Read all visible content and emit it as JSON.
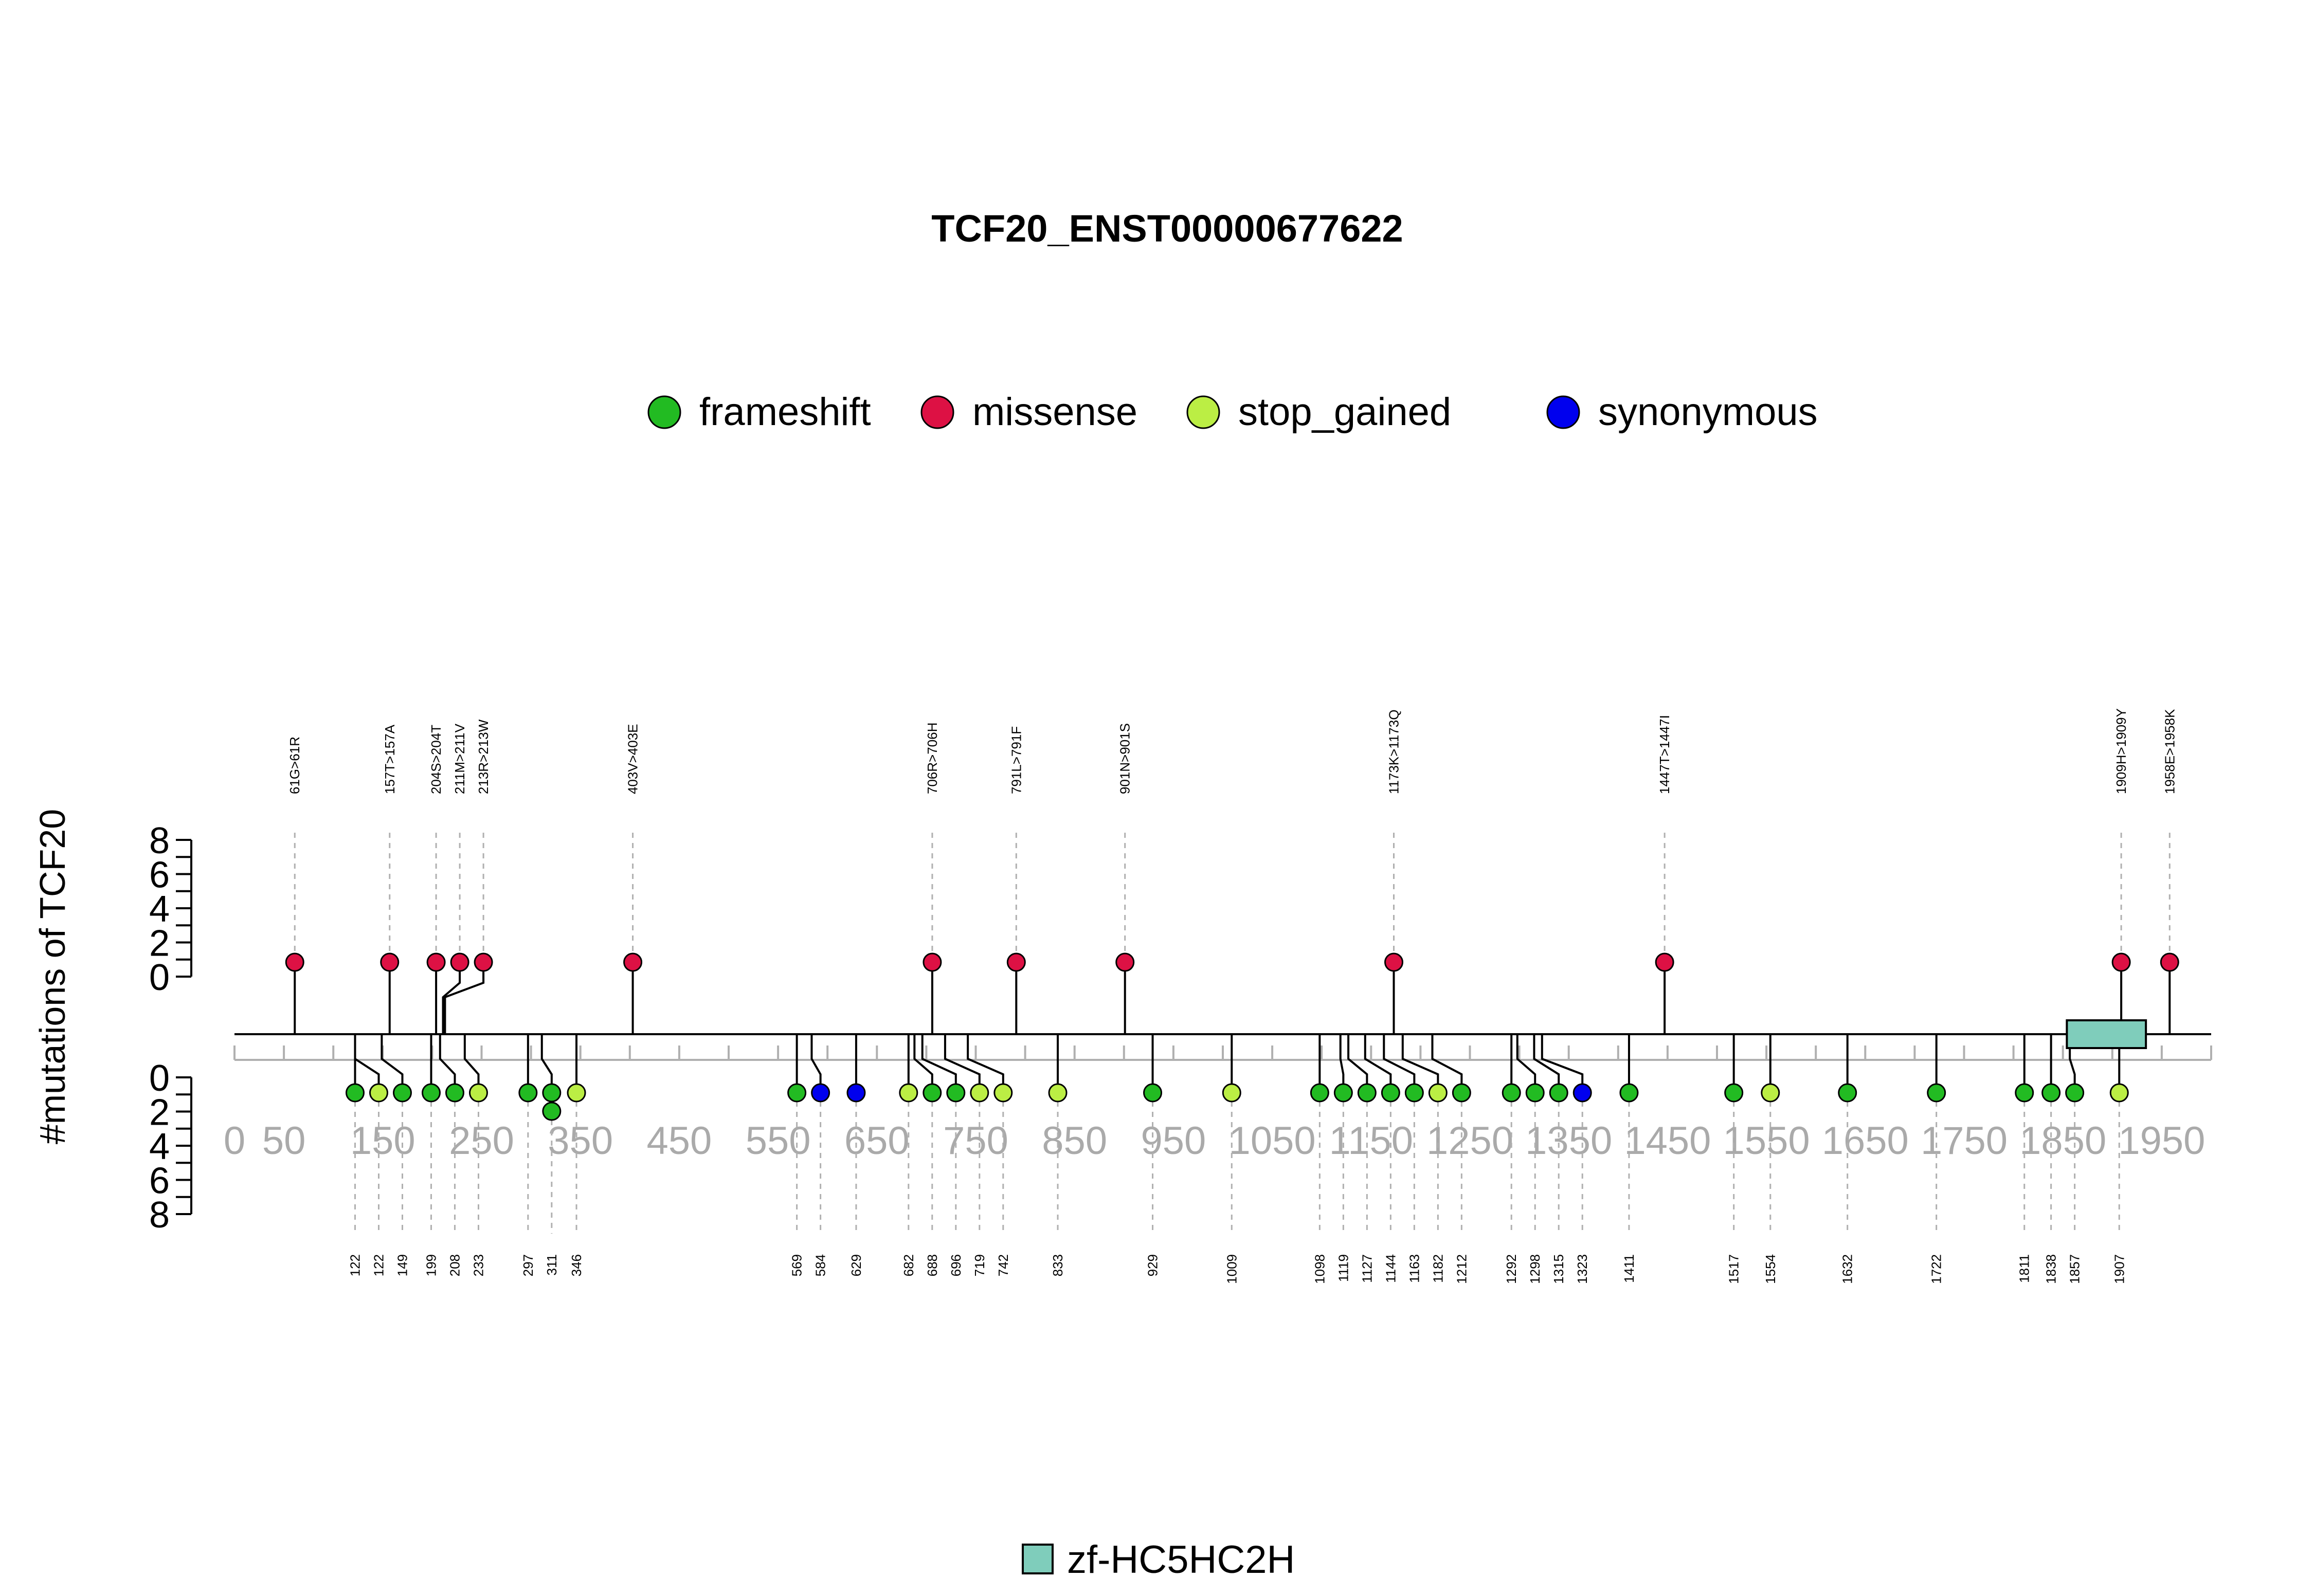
{
  "chart_data": {
    "type": "lollipop",
    "title": "TCF20_ENST00000677622",
    "ylabel": "#mutations of TCF20",
    "x_ticks": [
      "0",
      "50",
      "150",
      "250",
      "350",
      "450",
      "550",
      "650",
      "750",
      "850",
      "950",
      "1050",
      "1150",
      "1250",
      "1350",
      "1450",
      "1550",
      "1650",
      "1750",
      "1850",
      "1950"
    ],
    "x_range": [
      0,
      2000
    ],
    "y_ticks_upper": [
      "0",
      "2",
      "4",
      "6",
      "8"
    ],
    "y_ticks_lower": [
      "0",
      "2",
      "4",
      "6",
      "8"
    ],
    "y_range": [
      0,
      8
    ],
    "legend": [
      {
        "label": "frameshift",
        "color": "#22bb22"
      },
      {
        "label": "missense",
        "color": "#dd1144"
      },
      {
        "label": "stop_gained",
        "color": "#bbee44"
      },
      {
        "label": "synonymous",
        "color": "#0000ee"
      }
    ],
    "domains": [
      {
        "name": "zf-HC5HC2H",
        "start": 1854,
        "end": 1934,
        "color": "#7fcdbb"
      }
    ],
    "upper_mutations": [
      {
        "pos": 61,
        "count": 1,
        "type": "missense",
        "label": "61G>61R"
      },
      {
        "pos": 157,
        "count": 1,
        "type": "missense",
        "label": "157T>157A"
      },
      {
        "pos": 204,
        "count": 1,
        "type": "missense",
        "label": "204S>204T"
      },
      {
        "pos": 211,
        "count": 1,
        "type": "missense",
        "label": "211M>211V"
      },
      {
        "pos": 213,
        "count": 1,
        "type": "missense",
        "label": "213R>213W"
      },
      {
        "pos": 403,
        "count": 1,
        "type": "missense",
        "label": "403V>403E"
      },
      {
        "pos": 706,
        "count": 1,
        "type": "missense",
        "label": "706R>706H"
      },
      {
        "pos": 791,
        "count": 1,
        "type": "missense",
        "label": "791L>791F"
      },
      {
        "pos": 901,
        "count": 1,
        "type": "missense",
        "label": "901N>901S"
      },
      {
        "pos": 1173,
        "count": 1,
        "type": "missense",
        "label": "1173K>1173Q"
      },
      {
        "pos": 1447,
        "count": 1,
        "type": "missense",
        "label": "1447T>1447I"
      },
      {
        "pos": 1909,
        "count": 1,
        "type": "missense",
        "label": "1909H>1909Y"
      },
      {
        "pos": 1958,
        "count": 1,
        "type": "missense",
        "label": "1958E>1958K"
      }
    ],
    "lower_mutations": [
      {
        "pos": 122,
        "count": 1,
        "type": "frameshift",
        "label": "122"
      },
      {
        "pos": 122,
        "count": 1,
        "type": "stop_gained",
        "label": "122"
      },
      {
        "pos": 149,
        "count": 1,
        "type": "frameshift",
        "label": "149"
      },
      {
        "pos": 199,
        "count": 1,
        "type": "frameshift",
        "label": "199"
      },
      {
        "pos": 208,
        "count": 1,
        "type": "frameshift",
        "label": "208"
      },
      {
        "pos": 233,
        "count": 1,
        "type": "stop_gained",
        "label": "233"
      },
      {
        "pos": 297,
        "count": 1,
        "type": "frameshift",
        "label": "297"
      },
      {
        "pos": 311,
        "count": 2,
        "type": "frameshift",
        "label": "311"
      },
      {
        "pos": 346,
        "count": 1,
        "type": "stop_gained",
        "label": "346"
      },
      {
        "pos": 569,
        "count": 1,
        "type": "frameshift",
        "label": "569"
      },
      {
        "pos": 584,
        "count": 1,
        "type": "synonymous",
        "label": "584"
      },
      {
        "pos": 629,
        "count": 1,
        "type": "synonymous",
        "label": "629"
      },
      {
        "pos": 682,
        "count": 1,
        "type": "stop_gained",
        "label": "682"
      },
      {
        "pos": 688,
        "count": 1,
        "type": "frameshift",
        "label": "688"
      },
      {
        "pos": 696,
        "count": 1,
        "type": "frameshift",
        "label": "696"
      },
      {
        "pos": 719,
        "count": 1,
        "type": "stop_gained",
        "label": "719"
      },
      {
        "pos": 742,
        "count": 1,
        "type": "stop_gained",
        "label": "742"
      },
      {
        "pos": 833,
        "count": 1,
        "type": "stop_gained",
        "label": "833"
      },
      {
        "pos": 929,
        "count": 1,
        "type": "frameshift",
        "label": "929"
      },
      {
        "pos": 1009,
        "count": 1,
        "type": "stop_gained",
        "label": "1009"
      },
      {
        "pos": 1098,
        "count": 1,
        "type": "frameshift",
        "label": "1098"
      },
      {
        "pos": 1119,
        "count": 1,
        "type": "frameshift",
        "label": "1119"
      },
      {
        "pos": 1127,
        "count": 1,
        "type": "frameshift",
        "label": "1127"
      },
      {
        "pos": 1144,
        "count": 1,
        "type": "frameshift",
        "label": "1144"
      },
      {
        "pos": 1163,
        "count": 1,
        "type": "frameshift",
        "label": "1163"
      },
      {
        "pos": 1182,
        "count": 1,
        "type": "stop_gained",
        "label": "1182"
      },
      {
        "pos": 1212,
        "count": 1,
        "type": "frameshift",
        "label": "1212"
      },
      {
        "pos": 1292,
        "count": 1,
        "type": "frameshift",
        "label": "1292"
      },
      {
        "pos": 1298,
        "count": 1,
        "type": "frameshift",
        "label": "1298"
      },
      {
        "pos": 1315,
        "count": 1,
        "type": "frameshift",
        "label": "1315"
      },
      {
        "pos": 1323,
        "count": 1,
        "type": "synonymous",
        "label": "1323"
      },
      {
        "pos": 1411,
        "count": 1,
        "type": "frameshift",
        "label": "1411"
      },
      {
        "pos": 1517,
        "count": 1,
        "type": "frameshift",
        "label": "1517"
      },
      {
        "pos": 1554,
        "count": 1,
        "type": "stop_gained",
        "label": "1554"
      },
      {
        "pos": 1632,
        "count": 1,
        "type": "frameshift",
        "label": "1632"
      },
      {
        "pos": 1722,
        "count": 1,
        "type": "frameshift",
        "label": "1722"
      },
      {
        "pos": 1811,
        "count": 1,
        "type": "frameshift",
        "label": "1811"
      },
      {
        "pos": 1838,
        "count": 1,
        "type": "frameshift",
        "label": "1838"
      },
      {
        "pos": 1857,
        "count": 1,
        "type": "frameshift",
        "label": "1857"
      },
      {
        "pos": 1907,
        "count": 1,
        "type": "stop_gained",
        "label": "1907"
      }
    ]
  }
}
